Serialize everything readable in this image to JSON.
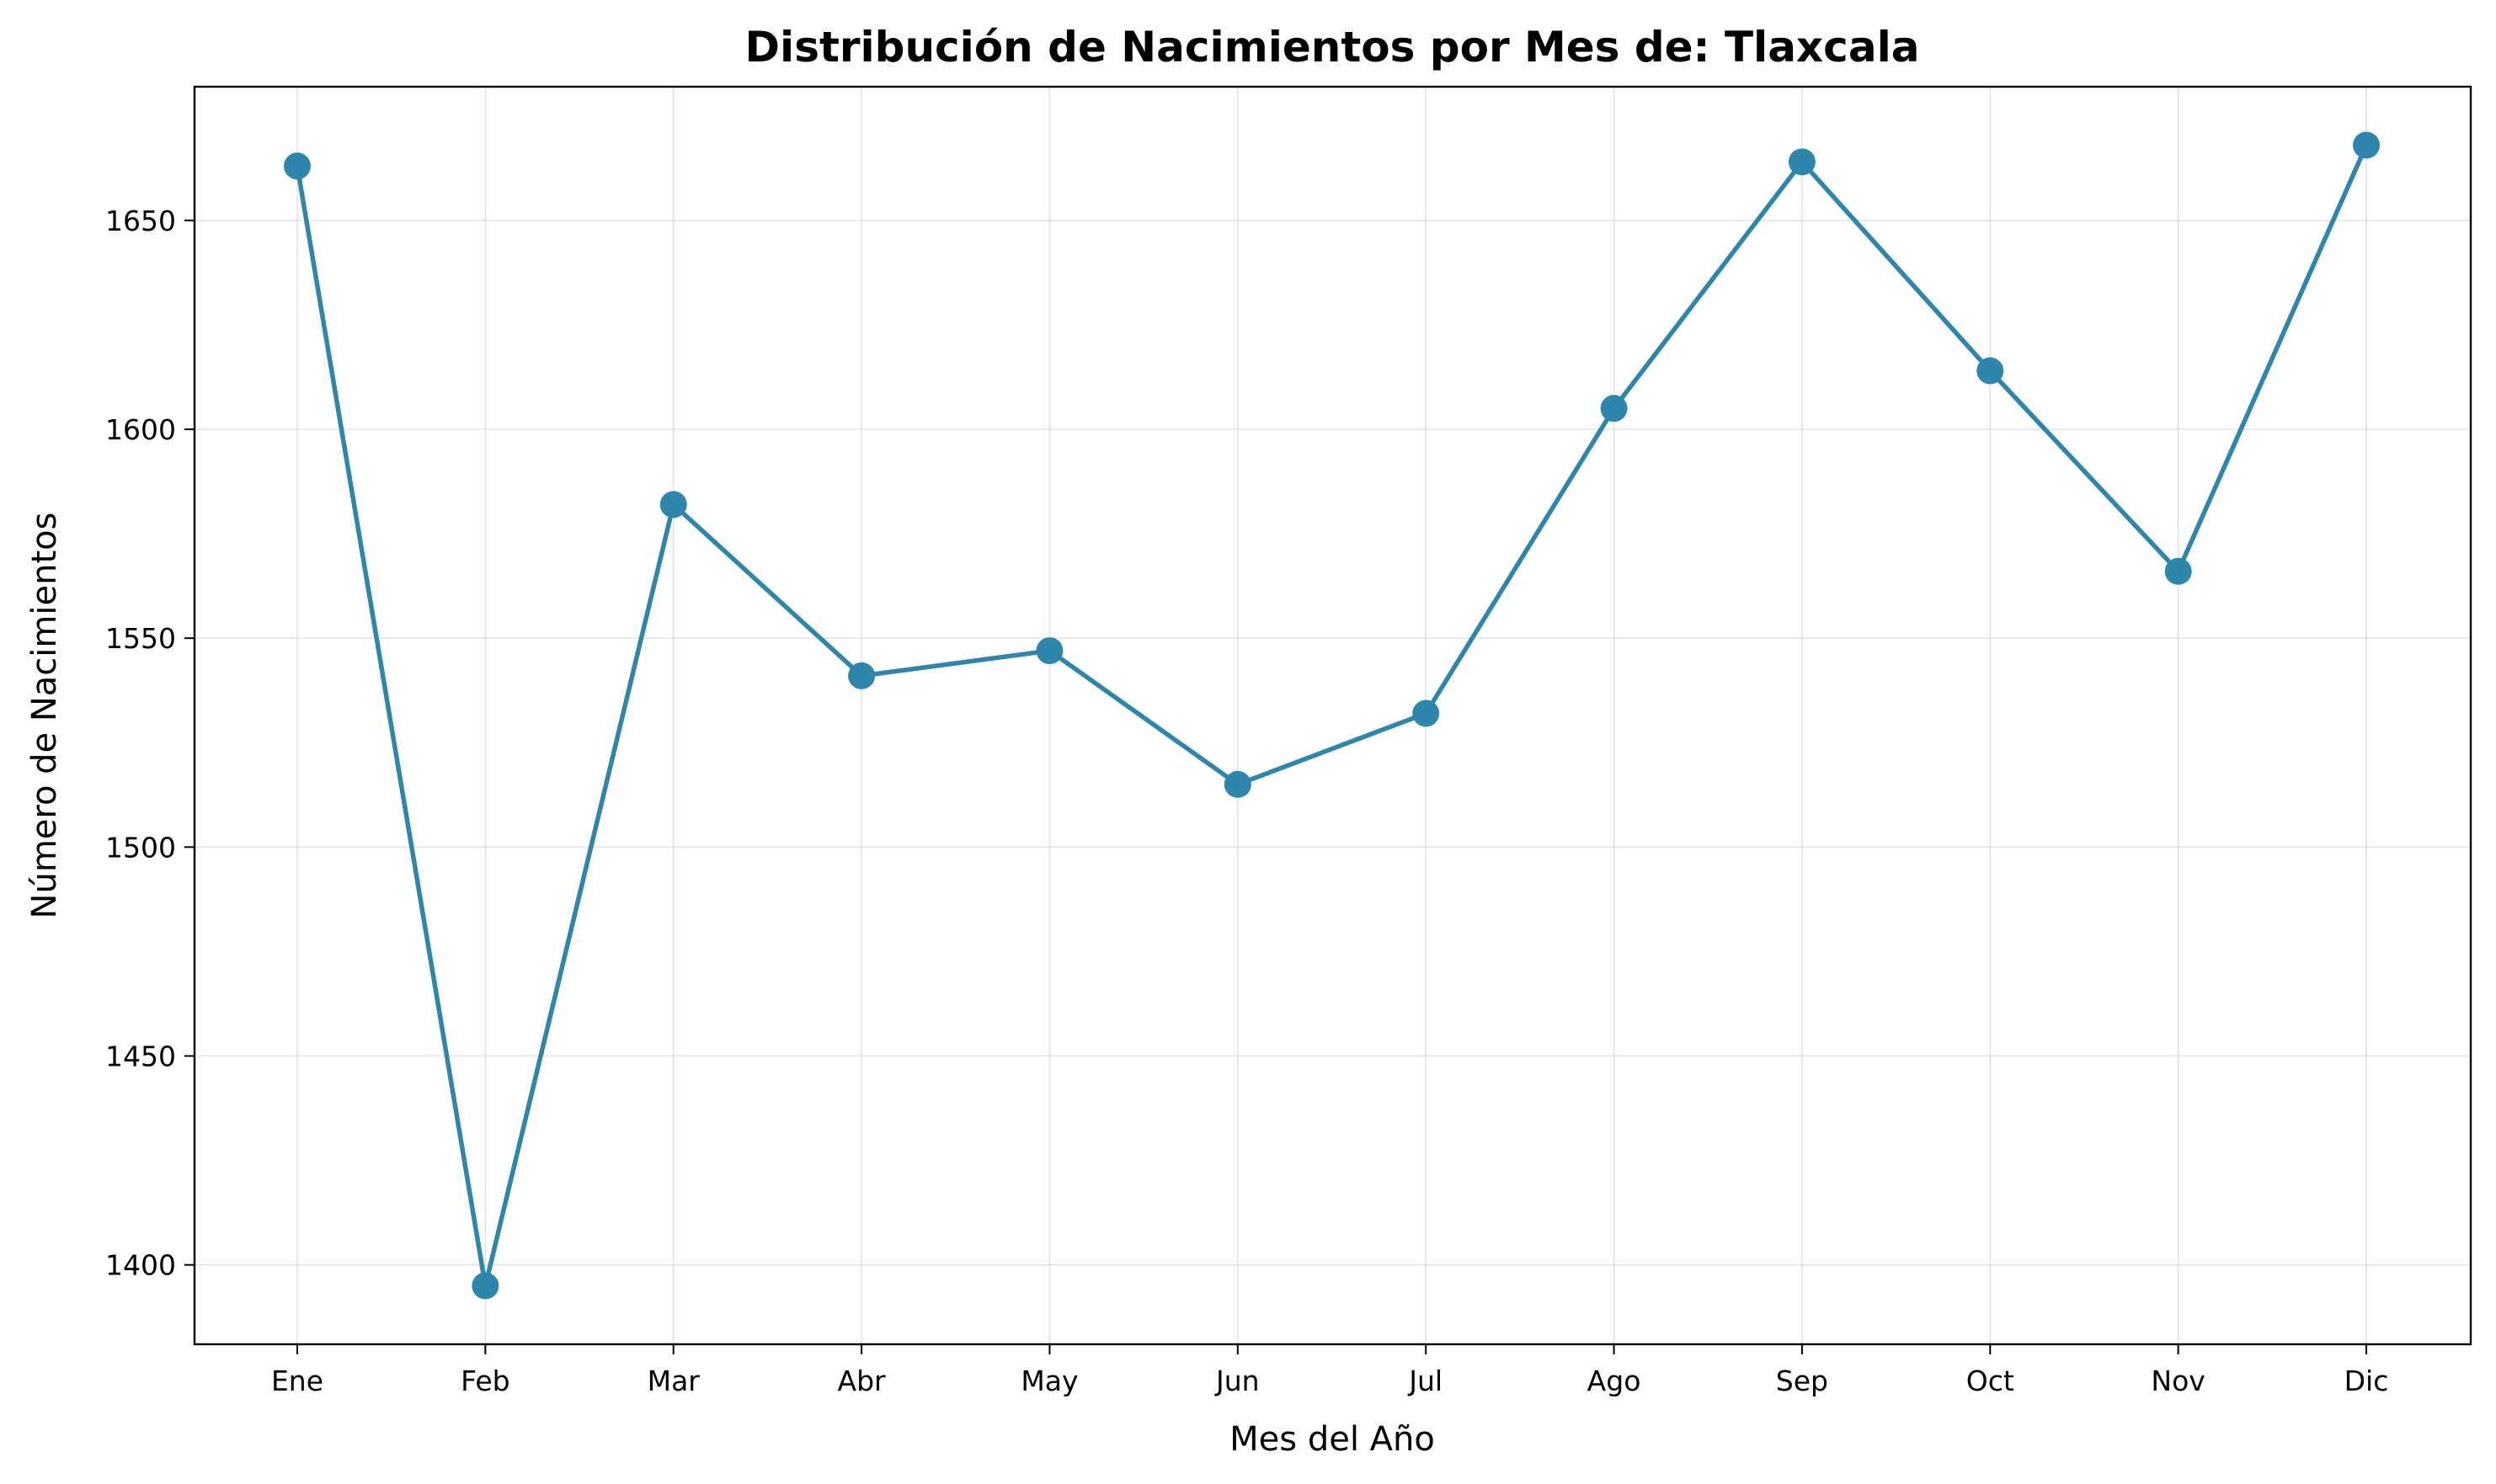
{
  "chart_data": {
    "type": "line",
    "title": "Distribución de Nacimientos por Mes de: Tlaxcala",
    "xlabel": "Mes del Año",
    "ylabel": "Número de Nacimientos",
    "categories": [
      "Ene",
      "Feb",
      "Mar",
      "Abr",
      "May",
      "Jun",
      "Jul",
      "Ago",
      "Sep",
      "Oct",
      "Nov",
      "Dic"
    ],
    "series": [
      {
        "values": [
          1663,
          1395,
          1582,
          1541,
          1547,
          1515,
          1532,
          1605,
          1664,
          1614,
          1566,
          1668
        ]
      }
    ],
    "ylim": [
      1381,
      1682
    ],
    "yticks": [
      1400,
      1450,
      1500,
      1550,
      1600,
      1650
    ],
    "grid": true,
    "colors": {
      "line": "#2e86ab",
      "marker": "#2e86ab"
    }
  }
}
